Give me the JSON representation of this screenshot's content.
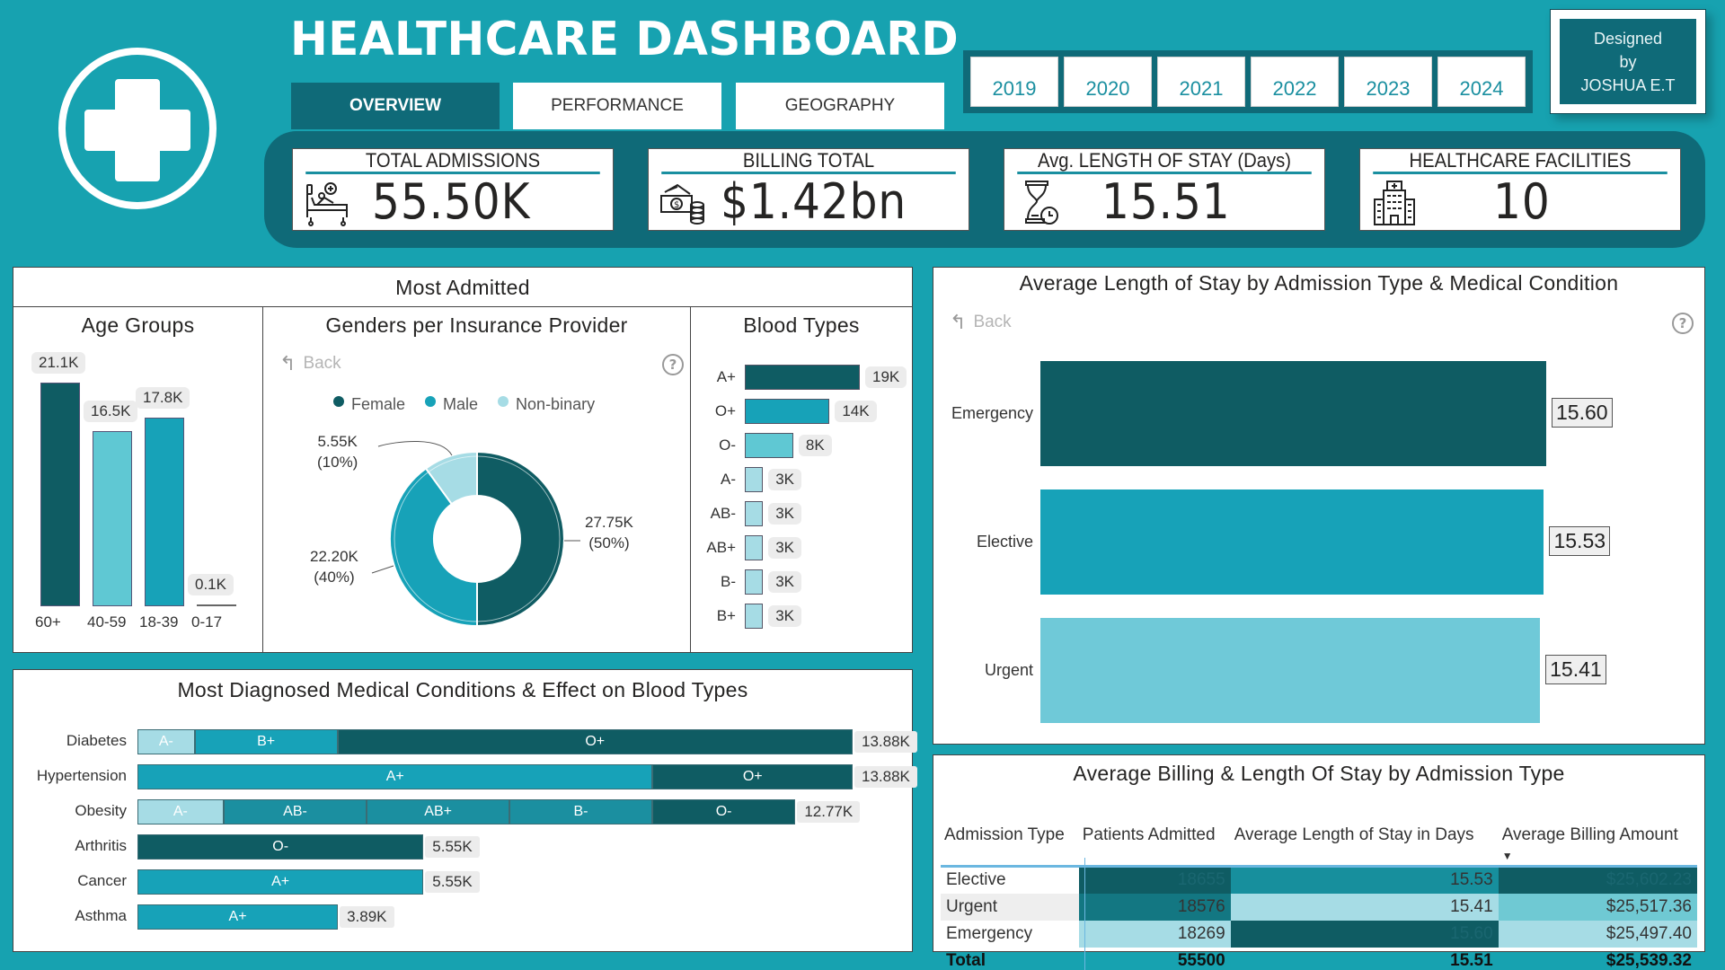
{
  "header": {
    "title": "HEALTHCARE DASHBOARD",
    "logo_icon": "medical-cross-icon",
    "tabs": [
      {
        "label": "OVERVIEW",
        "active": true
      },
      {
        "label": "PERFORMANCE",
        "active": false
      },
      {
        "label": "GEOGRAPHY",
        "active": false
      }
    ],
    "years": [
      "2019",
      "2020",
      "2021",
      "2022",
      "2023",
      "2024"
    ],
    "designer": {
      "line1": "Designed",
      "line2": "by",
      "line3": "JOSHUA E.T"
    }
  },
  "kpis": [
    {
      "label": "TOTAL ADMISSIONS",
      "value": "55.50K",
      "icon": "hospital-bed-icon"
    },
    {
      "label": "BILLING TOTAL",
      "value": "$1.42bn",
      "icon": "cash-coins-icon"
    },
    {
      "label": "Avg. LENGTH OF STAY (Days)",
      "value": "15.51",
      "icon": "hourglass-clock-icon"
    },
    {
      "label": "HEALTHCARE FACILITIES",
      "value": "10",
      "icon": "hospital-building-icon"
    }
  ],
  "colors": {
    "background": "#17a2b0",
    "dark_teal": "#0f5c63",
    "teal": "#17a2b8",
    "mid_teal": "#1b8fa0",
    "light_teal": "#5fc8d3",
    "pale_teal": "#a6dce5",
    "band": "#0f6a78"
  },
  "most_admitted": {
    "title": "Most Admitted",
    "back_label": "Back",
    "help_icon": "?"
  },
  "los_panel": {
    "title": "Average Length of Stay by Admission Type & Medical Condition",
    "back_label": "Back",
    "help_icon": "?"
  },
  "billing_table": {
    "title": "Average Billing & Length Of Stay by Admission Type",
    "columns": [
      "Admission Type",
      "Patients Admitted",
      "Average Length of Stay in Days",
      "Average Billing Amount"
    ],
    "sort_indicator": "▼",
    "rows": [
      {
        "type": "Elective",
        "patients": "18655",
        "los": "15.53",
        "billing": "$25,602.23"
      },
      {
        "type": "Urgent",
        "patients": "18576",
        "los": "15.41",
        "billing": "$25,517.36"
      },
      {
        "type": "Emergency",
        "patients": "18269",
        "los": "15.60",
        "billing": "$25,497.40"
      }
    ],
    "total": {
      "type": "Total",
      "patients": "55500",
      "los": "15.51",
      "billing": "$25,539.32"
    }
  },
  "chart_data": [
    {
      "type": "bar",
      "title": "Age Groups",
      "categories": [
        "60+",
        "40-59",
        "18-39",
        "0-17"
      ],
      "values": [
        21.1,
        16.5,
        17.8,
        0.1
      ],
      "value_labels": [
        "21.1K",
        "16.5K",
        "17.8K",
        "0.1K"
      ],
      "unit": "K",
      "colors": [
        "#0f5c63",
        "#5fc8d3",
        "#17a2b8",
        "#0f5c63"
      ],
      "ylim": [
        0,
        21.1
      ]
    },
    {
      "type": "pie",
      "variant": "donut",
      "title": "Genders per Insurance Provider",
      "legend": [
        "Female",
        "Male",
        "Non-binary"
      ],
      "legend_position": "top",
      "values": [
        27.75,
        22.2,
        5.55
      ],
      "value_labels": [
        "27.75K",
        "22.20K",
        "5.55K"
      ],
      "percent_labels": [
        "(50%)",
        "(40%)",
        "(10%)"
      ],
      "colors": [
        "#0f5c63",
        "#17a2b8",
        "#a6dce5"
      ]
    },
    {
      "type": "bar",
      "orientation": "horizontal",
      "title": "Blood Types",
      "categories": [
        "A+",
        "O+",
        "O-",
        "A-",
        "AB-",
        "AB+",
        "B-",
        "B+"
      ],
      "values": [
        19,
        14,
        8,
        3,
        3,
        3,
        3,
        3
      ],
      "value_labels": [
        "19K",
        "14K",
        "8K",
        "3K",
        "3K",
        "3K",
        "3K",
        "3K"
      ],
      "colors": [
        "#0f5c63",
        "#17a2b8",
        "#5fc8d3",
        "#a6dce5",
        "#a6dce5",
        "#a6dce5",
        "#a6dce5",
        "#a6dce5"
      ],
      "xlim": [
        0,
        19
      ]
    },
    {
      "type": "bar",
      "orientation": "horizontal",
      "stacked": true,
      "title": "Most Diagnosed Medical Conditions & Effect on Blood Types",
      "categories": [
        "Diabetes",
        "Hypertension",
        "Obesity",
        "Arthritis",
        "Cancer",
        "Asthma"
      ],
      "totals": [
        13.88,
        13.88,
        12.77,
        5.55,
        5.55,
        3.89
      ],
      "total_labels": [
        "13.88K",
        "13.88K",
        "12.77K",
        "5.55K",
        "5.55K",
        "3.89K"
      ],
      "segments": [
        [
          {
            "label": "A-",
            "value": 1.11,
            "color": "#a6dce5"
          },
          {
            "label": "B+",
            "value": 2.77,
            "color": "#17a2b8"
          },
          {
            "label": "O+",
            "value": 10.0,
            "color": "#0f5c63"
          }
        ],
        [
          {
            "label": "A+",
            "value": 10.0,
            "color": "#17a2b8"
          },
          {
            "label": "O+",
            "value": 3.88,
            "color": "#0f5c63"
          }
        ],
        [
          {
            "label": "A-",
            "value": 1.67,
            "color": "#a6dce5"
          },
          {
            "label": "AB-",
            "value": 2.78,
            "color": "#1b8fa0"
          },
          {
            "label": "AB+",
            "value": 2.77,
            "color": "#1b8fa0"
          },
          {
            "label": "B-",
            "value": 2.77,
            "color": "#1b8fa0"
          },
          {
            "label": "O-",
            "value": 2.78,
            "color": "#0f5c63"
          }
        ],
        [
          {
            "label": "O-",
            "value": 5.55,
            "color": "#0f5c63"
          }
        ],
        [
          {
            "label": "A+",
            "value": 5.55,
            "color": "#17a2b8"
          }
        ],
        [
          {
            "label": "A+",
            "value": 3.89,
            "color": "#17a2b8"
          }
        ]
      ],
      "xlim": [
        0,
        13.88
      ]
    },
    {
      "type": "bar",
      "orientation": "horizontal",
      "title": "Average Length of Stay by Admission Type & Medical Condition",
      "categories": [
        "Emergency",
        "Elective",
        "Urgent"
      ],
      "values": [
        15.6,
        15.53,
        15.41
      ],
      "value_labels": [
        "15.60",
        "15.53",
        "15.41"
      ],
      "colors": [
        "#0f5c63",
        "#17a2b8",
        "#6fc9d8"
      ],
      "xlim": [
        0,
        15.6
      ]
    }
  ]
}
